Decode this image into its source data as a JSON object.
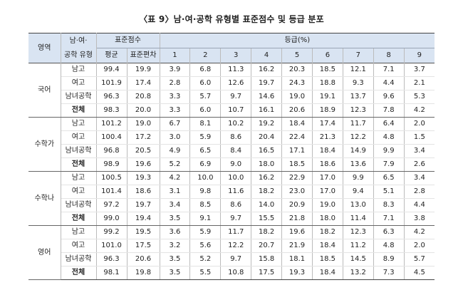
{
  "title": "〈표 9〉남·여·공학 유형별 표준점수 및 등급 분포",
  "headers": {
    "area": "영역",
    "type_line1": "남·여·",
    "type_line2": "공학 유형",
    "std_score": "표준점수",
    "mean": "평균",
    "sd": "표준편차",
    "grade": "등급(%)",
    "grade_cols": [
      "1",
      "2",
      "3",
      "4",
      "5",
      "6",
      "7",
      "8",
      "9"
    ]
  },
  "sections": [
    {
      "area": "국어",
      "rows": [
        {
          "type": "남고",
          "mean": "99.4",
          "sd": "19.9",
          "grades": [
            "3.9",
            "6.8",
            "11.3",
            "16.2",
            "20.3",
            "18.5",
            "12.1",
            "7.1",
            "3.7"
          ]
        },
        {
          "type": "여고",
          "mean": "101.9",
          "sd": "17.4",
          "grades": [
            "2.8",
            "6.0",
            "12.6",
            "19.7",
            "24.3",
            "18.8",
            "9.3",
            "4.4",
            "2.1"
          ]
        },
        {
          "type": "남녀공학",
          "mean": "96.3",
          "sd": "20.8",
          "grades": [
            "3.3",
            "5.7",
            "9.7",
            "14.6",
            "19.0",
            "19.1",
            "13.7",
            "9.6",
            "5.3"
          ]
        },
        {
          "type": "전체",
          "mean": "98.3",
          "sd": "20.0",
          "grades": [
            "3.3",
            "6.0",
            "10.7",
            "16.1",
            "20.6",
            "18.9",
            "12.3",
            "7.8",
            "4.2"
          ]
        }
      ]
    },
    {
      "area": "수학가",
      "rows": [
        {
          "type": "남고",
          "mean": "101.2",
          "sd": "19.0",
          "grades": [
            "6.7",
            "8.1",
            "10.2",
            "19.2",
            "18.4",
            "17.4",
            "11.7",
            "6.4",
            "2.0"
          ]
        },
        {
          "type": "여고",
          "mean": "100.4",
          "sd": "17.2",
          "grades": [
            "3.0",
            "5.9",
            "8.6",
            "20.4",
            "22.4",
            "21.3",
            "12.2",
            "4.8",
            "1.5"
          ]
        },
        {
          "type": "남녀공학",
          "mean": "96.8",
          "sd": "20.5",
          "grades": [
            "4.9",
            "6.5",
            "8.4",
            "16.5",
            "17.1",
            "18.4",
            "14.9",
            "9.9",
            "3.4"
          ]
        },
        {
          "type": "전체",
          "mean": "98.9",
          "sd": "19.6",
          "grades": [
            "5.2",
            "6.9",
            "9.0",
            "18.0",
            "18.5",
            "18.6",
            "13.6",
            "7.9",
            "2.6"
          ]
        }
      ]
    },
    {
      "area": "수학나",
      "rows": [
        {
          "type": "남고",
          "mean": "100.5",
          "sd": "19.3",
          "grades": [
            "4.2",
            "10.0",
            "10.0",
            "16.2",
            "22.9",
            "17.0",
            "9.9",
            "6.5",
            "3.4"
          ]
        },
        {
          "type": "여고",
          "mean": "101.4",
          "sd": "18.6",
          "grades": [
            "3.1",
            "9.8",
            "11.6",
            "18.2",
            "23.0",
            "17.0",
            "9.4",
            "5.1",
            "2.8"
          ]
        },
        {
          "type": "남녀공학",
          "mean": "97.2",
          "sd": "19.7",
          "grades": [
            "3.4",
            "8.5",
            "8.6",
            "14.0",
            "20.9",
            "19.0",
            "13.0",
            "8.3",
            "4.4"
          ]
        },
        {
          "type": "전체",
          "mean": "99.0",
          "sd": "19.4",
          "grades": [
            "3.5",
            "9.1",
            "9.7",
            "15.5",
            "21.8",
            "18.0",
            "11.4",
            "7.1",
            "3.8"
          ]
        }
      ]
    },
    {
      "area": "영어",
      "rows": [
        {
          "type": "남고",
          "mean": "99.2",
          "sd": "19.5",
          "grades": [
            "3.6",
            "5.9",
            "11.7",
            "18.2",
            "19.6",
            "18.2",
            "12.3",
            "6.3",
            "4.2"
          ]
        },
        {
          "type": "여고",
          "mean": "101.0",
          "sd": "17.5",
          "grades": [
            "3.2",
            "5.6",
            "12.2",
            "20.7",
            "21.9",
            "18.4",
            "11.2",
            "4.8",
            "2.0"
          ]
        },
        {
          "type": "남녀공학",
          "mean": "96.3",
          "sd": "20.6",
          "grades": [
            "3.5",
            "5.2",
            "9.7",
            "15.8",
            "18.1",
            "18.5",
            "14.5",
            "8.9",
            "5.7"
          ]
        },
        {
          "type": "전체",
          "mean": "98.1",
          "sd": "19.8",
          "grades": [
            "3.5",
            "5.5",
            "10.8",
            "17.5",
            "19.3",
            "18.4",
            "13.2",
            "7.3",
            "4.5"
          ]
        }
      ]
    }
  ]
}
